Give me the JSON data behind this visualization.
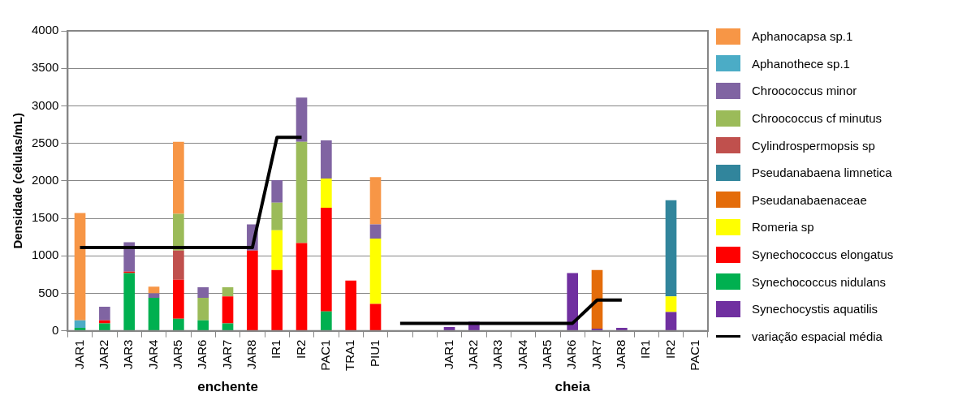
{
  "chart_data": {
    "type": "bar",
    "stacked": true,
    "ylabel": "Densidade (células/mL)",
    "categories": [
      "JAR1",
      "JAR2",
      "JAR3",
      "JAR4",
      "JAR5",
      "JAR6",
      "JAR7",
      "JAR8",
      "IR1",
      "IR2",
      "PAC1",
      "TRA1",
      "PIU1",
      null,
      null,
      "JAR1",
      "JAR2",
      "JAR3",
      "JAR4",
      "JAR5",
      "JAR6",
      "JAR7",
      "JAR8",
      "IR1",
      "IR2",
      "PAC1"
    ],
    "ylim": [
      0,
      4000
    ],
    "yticks": [
      0,
      500,
      1000,
      1500,
      2000,
      2500,
      3000,
      3500,
      4000
    ],
    "grid": "y",
    "legend": "right",
    "annotations": [
      "enchente",
      "cheia"
    ],
    "series": [
      {
        "name": "Synechocystis aquatilis",
        "color": "#7030a0",
        "values": [
          null,
          null,
          null,
          null,
          null,
          null,
          null,
          null,
          null,
          null,
          null,
          null,
          null,
          null,
          null,
          50,
          120,
          null,
          null,
          null,
          770,
          30,
          40,
          null,
          250,
          null
        ]
      },
      {
        "name": "Synechococcus nidulans",
        "color": "#00b050",
        "values": [
          40,
          100,
          770,
          440,
          160,
          140,
          100,
          null,
          null,
          null,
          260,
          null,
          null,
          null,
          null,
          null,
          null,
          null,
          null,
          null,
          null,
          null,
          null,
          null,
          null,
          null
        ]
      },
      {
        "name": "Synechococcus elongatus",
        "color": "#ff0000",
        "values": [
          null,
          40,
          20,
          null,
          520,
          null,
          360,
          1070,
          810,
          1170,
          1380,
          670,
          360,
          null,
          null,
          null,
          null,
          null,
          null,
          null,
          null,
          null,
          null,
          null,
          null,
          null
        ]
      },
      {
        "name": "Romeria sp",
        "color": "#ffff00",
        "values": [
          null,
          null,
          null,
          null,
          null,
          null,
          null,
          null,
          530,
          null,
          390,
          null,
          870,
          null,
          null,
          null,
          null,
          null,
          null,
          null,
          null,
          null,
          null,
          null,
          210,
          null
        ]
      },
      {
        "name": "Pseudanabaenaceae",
        "color": "#e46c0a",
        "values": [
          null,
          null,
          null,
          null,
          null,
          null,
          null,
          null,
          null,
          null,
          null,
          null,
          null,
          null,
          null,
          null,
          null,
          null,
          null,
          null,
          null,
          780,
          null,
          null,
          null,
          null
        ]
      },
      {
        "name": "Pseudanabaena limnetica",
        "color": "#31859c",
        "values": [
          null,
          null,
          null,
          null,
          null,
          null,
          null,
          null,
          null,
          null,
          null,
          null,
          null,
          null,
          null,
          null,
          null,
          null,
          null,
          null,
          null,
          null,
          null,
          null,
          1280,
          null
        ]
      },
      {
        "name": "Cylindrospermopsis sp",
        "color": "#c0504d",
        "values": [
          null,
          null,
          null,
          null,
          390,
          null,
          null,
          null,
          null,
          null,
          null,
          null,
          null,
          null,
          null,
          null,
          null,
          null,
          null,
          null,
          null,
          null,
          null,
          null,
          null,
          null
        ]
      },
      {
        "name": "Chroococcus cf minutus",
        "color": "#9bbb59",
        "values": [
          null,
          null,
          null,
          null,
          490,
          300,
          120,
          null,
          370,
          1350,
          null,
          null,
          null,
          null,
          null,
          null,
          null,
          null,
          null,
          null,
          null,
          null,
          null,
          null,
          null,
          null
        ]
      },
      {
        "name": "Chroococcus minor",
        "color": "#8064a2",
        "values": [
          null,
          180,
          390,
          60,
          null,
          140,
          null,
          350,
          300,
          590,
          510,
          null,
          190,
          null,
          null,
          null,
          null,
          null,
          null,
          null,
          null,
          null,
          null,
          null,
          null,
          null
        ]
      },
      {
        "name": "Aphanothece sp.1",
        "color": "#4bacc6",
        "values": [
          100,
          null,
          null,
          null,
          null,
          null,
          null,
          null,
          null,
          null,
          null,
          null,
          null,
          null,
          null,
          null,
          null,
          null,
          null,
          null,
          null,
          null,
          null,
          null,
          null,
          null
        ]
      },
      {
        "name": "Aphanocapsa sp.1",
        "color": "#f79646",
        "values": [
          1430,
          null,
          null,
          90,
          960,
          null,
          null,
          null,
          null,
          null,
          null,
          null,
          630,
          null,
          null,
          null,
          null,
          null,
          null,
          null,
          null,
          null,
          null,
          null,
          null,
          null
        ]
      },
      {
        "name": "variação espacial média",
        "type": "line",
        "color": "#000000",
        "values": [
          1110,
          1110,
          1110,
          1110,
          1110,
          1110,
          1110,
          1110,
          2580,
          2580,
          null,
          null,
          null,
          100,
          100,
          100,
          100,
          100,
          100,
          100,
          100,
          410,
          410,
          null,
          null,
          null
        ]
      }
    ]
  }
}
